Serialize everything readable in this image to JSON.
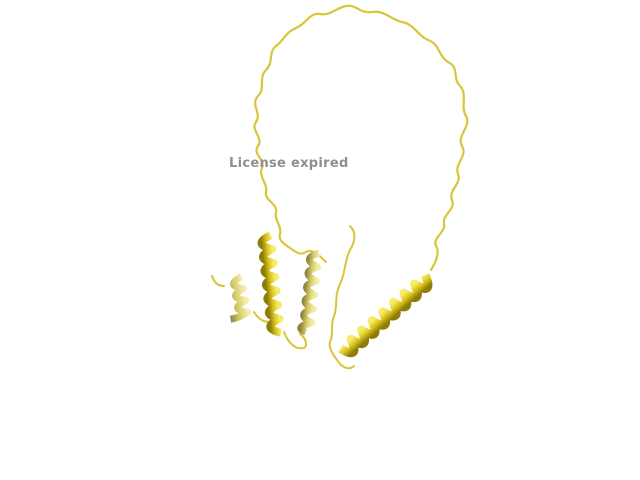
{
  "watermark": {
    "text": "License expired"
  },
  "colors": {
    "background": "#ffffff",
    "ribbon": "#e6d23a",
    "ribbon_dark": "#8e7d08",
    "ribbon_light": "#f6eb8c",
    "watermark": "#8f8f8f"
  },
  "structure": {
    "style": "cartoon",
    "elements": [
      "coil",
      "helix"
    ]
  }
}
